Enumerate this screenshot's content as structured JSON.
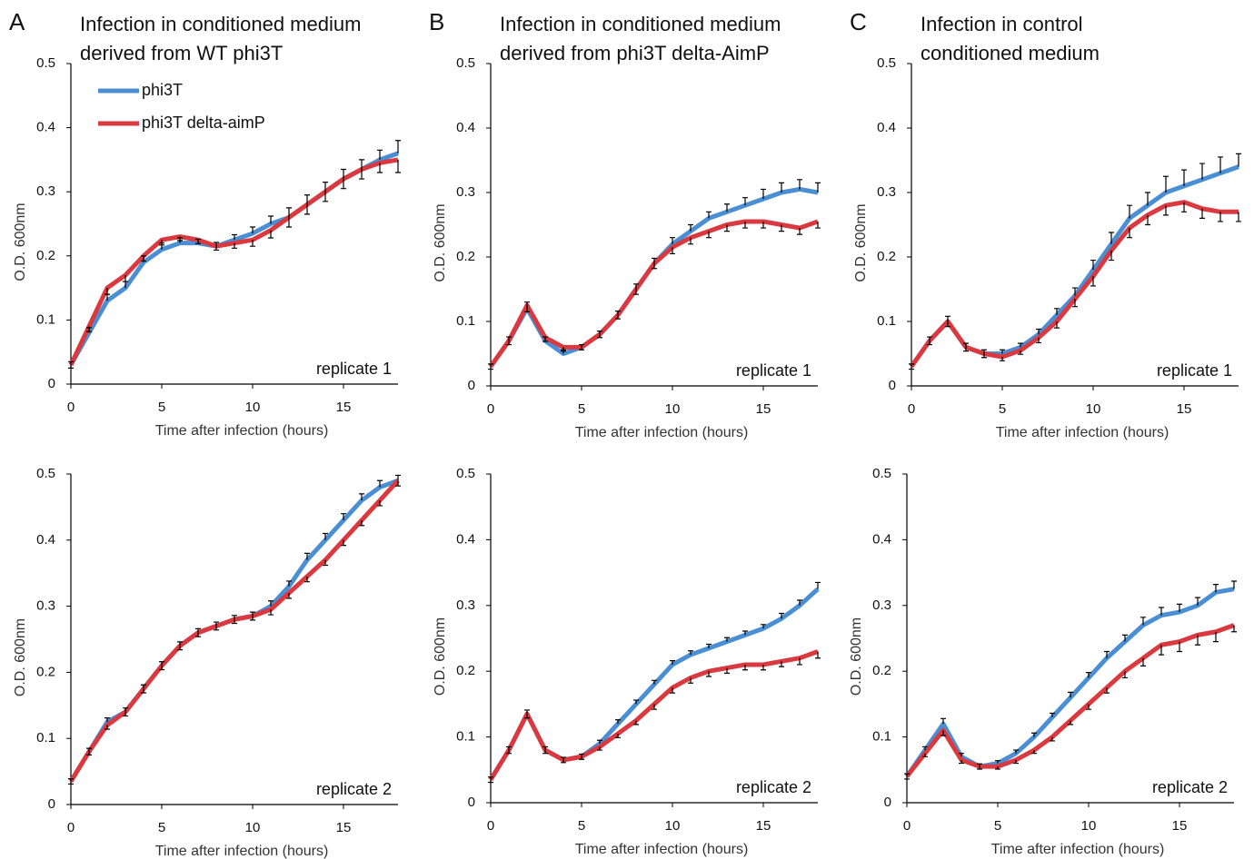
{
  "chart_data": [
    {
      "type": "line",
      "panel_label": "A",
      "title": [
        "Infection in conditioned medium",
        "derived from WT phi3T"
      ],
      "annotation": "replicate 1",
      "xlabel": "Time after infection (hours)",
      "ylabel": "O.D. 600nm",
      "x": [
        0,
        1,
        2,
        3,
        4,
        5,
        6,
        7,
        8,
        9,
        10,
        11,
        12,
        13,
        14,
        15,
        16,
        17,
        18
      ],
      "xlim": [
        0,
        18
      ],
      "xticks": [
        0,
        5,
        10,
        15
      ],
      "ylim": [
        0,
        0.5
      ],
      "yticks": [
        0,
        0.1,
        0.2,
        0.3,
        0.4,
        0.5
      ],
      "legend": "upper left",
      "series": [
        {
          "name": "phi3T",
          "color": "#4a8fd4",
          "values": [
            0.03,
            0.08,
            0.13,
            0.15,
            0.19,
            0.21,
            0.22,
            0.22,
            0.215,
            0.225,
            0.235,
            0.25,
            0.26,
            0.28,
            0.3,
            0.32,
            0.335,
            0.35,
            0.36
          ],
          "errors": [
            0.005,
            0.008,
            0.01,
            0.01,
            0.01,
            0.01,
            0.008,
            0.006,
            0.006,
            0.008,
            0.01,
            0.012,
            0.015,
            0.015,
            0.015,
            0.015,
            0.015,
            0.015,
            0.02
          ]
        },
        {
          "name": "phi3T delta-aimP",
          "color": "#d9393f",
          "values": [
            0.03,
            0.09,
            0.15,
            0.17,
            0.2,
            0.225,
            0.23,
            0.225,
            0.215,
            0.22,
            0.225,
            0.24,
            0.26,
            0.28,
            0.3,
            0.32,
            0.335,
            0.345,
            0.35
          ],
          "errors": [
            0.005,
            0.008,
            0.01,
            0.01,
            0.008,
            0.008,
            0.006,
            0.006,
            0.006,
            0.008,
            0.01,
            0.012,
            0.015,
            0.015,
            0.015,
            0.015,
            0.015,
            0.015,
            0.02
          ]
        }
      ]
    },
    {
      "type": "line",
      "panel_label": "B",
      "title": [
        "Infection in conditioned medium",
        "derived from phi3T delta-AimP"
      ],
      "annotation": "replicate 1",
      "xlabel": "Time after infection (hours)",
      "ylabel": "O.D. 600nm",
      "x": [
        0,
        1,
        2,
        3,
        4,
        5,
        6,
        7,
        8,
        9,
        10,
        11,
        12,
        13,
        14,
        15,
        16,
        17,
        18
      ],
      "xlim": [
        0,
        18
      ],
      "xticks": [
        0,
        5,
        10,
        15
      ],
      "ylim": [
        0,
        0.5
      ],
      "yticks": [
        0,
        0.1,
        0.2,
        0.3,
        0.4,
        0.5
      ],
      "series": [
        {
          "color": "#4a8fd4",
          "values": [
            0.03,
            0.07,
            0.12,
            0.07,
            0.05,
            0.06,
            0.08,
            0.11,
            0.15,
            0.19,
            0.22,
            0.24,
            0.26,
            0.27,
            0.28,
            0.29,
            0.3,
            0.305,
            0.3
          ],
          "errors": [
            0.004,
            0.006,
            0.01,
            0.006,
            0.004,
            0.004,
            0.005,
            0.006,
            0.008,
            0.008,
            0.01,
            0.01,
            0.01,
            0.012,
            0.012,
            0.015,
            0.015,
            0.015,
            0.015
          ]
        },
        {
          "color": "#d9393f",
          "values": [
            0.03,
            0.07,
            0.125,
            0.075,
            0.06,
            0.06,
            0.08,
            0.11,
            0.15,
            0.19,
            0.215,
            0.23,
            0.24,
            0.25,
            0.255,
            0.255,
            0.25,
            0.245,
            0.255
          ],
          "errors": [
            0.004,
            0.006,
            0.01,
            0.006,
            0.004,
            0.004,
            0.005,
            0.006,
            0.008,
            0.008,
            0.01,
            0.01,
            0.01,
            0.01,
            0.01,
            0.01,
            0.01,
            0.01,
            0.01
          ]
        }
      ]
    },
    {
      "type": "line",
      "panel_label": "C",
      "title": [
        "Infection in control",
        "conditioned medium"
      ],
      "annotation": "replicate 1",
      "xlabel": "Time after infection (hours)",
      "ylabel": "O.D. 600nm",
      "x": [
        0,
        1,
        2,
        3,
        4,
        5,
        6,
        7,
        8,
        9,
        10,
        11,
        12,
        13,
        14,
        15,
        16,
        17,
        18
      ],
      "xlim": [
        0,
        18
      ],
      "xticks": [
        0,
        5,
        10,
        15
      ],
      "ylim": [
        0,
        0.5
      ],
      "yticks": [
        0,
        0.1,
        0.2,
        0.3,
        0.4,
        0.5
      ],
      "series": [
        {
          "color": "#4a8fd4",
          "values": [
            0.03,
            0.07,
            0.1,
            0.06,
            0.05,
            0.05,
            0.06,
            0.08,
            0.11,
            0.14,
            0.18,
            0.22,
            0.26,
            0.28,
            0.3,
            0.31,
            0.32,
            0.33,
            0.34
          ],
          "errors": [
            0.004,
            0.006,
            0.008,
            0.006,
            0.006,
            0.006,
            0.006,
            0.008,
            0.01,
            0.012,
            0.015,
            0.018,
            0.02,
            0.02,
            0.025,
            0.025,
            0.025,
            0.025,
            0.02
          ]
        },
        {
          "color": "#d9393f",
          "values": [
            0.03,
            0.07,
            0.1,
            0.06,
            0.05,
            0.045,
            0.055,
            0.075,
            0.1,
            0.135,
            0.17,
            0.21,
            0.245,
            0.265,
            0.28,
            0.285,
            0.275,
            0.27,
            0.27
          ],
          "errors": [
            0.004,
            0.006,
            0.008,
            0.006,
            0.006,
            0.006,
            0.006,
            0.008,
            0.01,
            0.012,
            0.015,
            0.015,
            0.015,
            0.015,
            0.015,
            0.015,
            0.015,
            0.015,
            0.015
          ]
        }
      ]
    },
    {
      "type": "line",
      "annotation": "replicate 2",
      "xlabel": "Time after infection (hours)",
      "ylabel": "O.D. 600nm",
      "x": [
        0,
        1,
        2,
        3,
        4,
        5,
        6,
        7,
        8,
        9,
        10,
        11,
        12,
        13,
        14,
        15,
        16,
        17,
        18
      ],
      "xlim": [
        0,
        18
      ],
      "xticks": [
        0,
        5,
        10,
        15
      ],
      "ylim": [
        0,
        0.5
      ],
      "yticks": [
        0,
        0.1,
        0.2,
        0.3,
        0.4,
        0.5
      ],
      "series": [
        {
          "color": "#4a8fd4",
          "values": [
            0.035,
            0.08,
            0.125,
            0.14,
            0.175,
            0.21,
            0.24,
            0.26,
            0.27,
            0.28,
            0.285,
            0.3,
            0.33,
            0.37,
            0.4,
            0.43,
            0.46,
            0.48,
            0.49
          ],
          "errors": [
            0.004,
            0.005,
            0.006,
            0.006,
            0.006,
            0.006,
            0.006,
            0.006,
            0.006,
            0.006,
            0.006,
            0.008,
            0.008,
            0.01,
            0.01,
            0.01,
            0.01,
            0.01,
            0.008
          ]
        },
        {
          "color": "#d9393f",
          "values": [
            0.035,
            0.08,
            0.12,
            0.14,
            0.175,
            0.21,
            0.24,
            0.26,
            0.27,
            0.28,
            0.285,
            0.295,
            0.32,
            0.345,
            0.37,
            0.4,
            0.43,
            0.46,
            0.49
          ],
          "errors": [
            0.004,
            0.005,
            0.006,
            0.006,
            0.006,
            0.006,
            0.006,
            0.006,
            0.006,
            0.006,
            0.006,
            0.008,
            0.008,
            0.008,
            0.008,
            0.008,
            0.008,
            0.008,
            0.008
          ]
        }
      ]
    },
    {
      "type": "line",
      "annotation": "replicate 2",
      "xlabel": "Time after infection (hours)",
      "ylabel": "O.D. 600nm",
      "x": [
        0,
        1,
        2,
        3,
        4,
        5,
        6,
        7,
        8,
        9,
        10,
        11,
        12,
        13,
        14,
        15,
        16,
        17,
        18
      ],
      "xlim": [
        0,
        18
      ],
      "xticks": [
        0,
        5,
        10,
        15
      ],
      "ylim": [
        0,
        0.5
      ],
      "yticks": [
        0,
        0.1,
        0.2,
        0.3,
        0.4,
        0.5
      ],
      "series": [
        {
          "color": "#4a8fd4",
          "values": [
            0.035,
            0.08,
            0.135,
            0.08,
            0.065,
            0.07,
            0.09,
            0.12,
            0.15,
            0.18,
            0.21,
            0.225,
            0.235,
            0.245,
            0.255,
            0.265,
            0.28,
            0.3,
            0.325
          ],
          "errors": [
            0.004,
            0.005,
            0.006,
            0.005,
            0.004,
            0.004,
            0.005,
            0.006,
            0.006,
            0.006,
            0.006,
            0.006,
            0.006,
            0.006,
            0.006,
            0.006,
            0.008,
            0.008,
            0.01
          ]
        },
        {
          "color": "#d9393f",
          "values": [
            0.035,
            0.08,
            0.135,
            0.08,
            0.065,
            0.07,
            0.085,
            0.105,
            0.125,
            0.15,
            0.175,
            0.19,
            0.2,
            0.205,
            0.21,
            0.21,
            0.215,
            0.22,
            0.23
          ],
          "errors": [
            0.004,
            0.005,
            0.006,
            0.005,
            0.004,
            0.004,
            0.005,
            0.006,
            0.006,
            0.008,
            0.008,
            0.008,
            0.008,
            0.008,
            0.008,
            0.008,
            0.008,
            0.01,
            0.01
          ]
        }
      ]
    },
    {
      "type": "line",
      "annotation": "replicate 2",
      "xlabel": "Time after infection (hours)",
      "ylabel": "O.D. 600nm",
      "x": [
        0,
        1,
        2,
        3,
        4,
        5,
        6,
        7,
        8,
        9,
        10,
        11,
        12,
        13,
        14,
        15,
        16,
        17,
        18
      ],
      "xlim": [
        0,
        18
      ],
      "xticks": [
        0,
        5,
        10,
        15
      ],
      "ylim": [
        0,
        0.5
      ],
      "yticks": [
        0,
        0.1,
        0.2,
        0.3,
        0.4,
        0.5
      ],
      "series": [
        {
          "color": "#4a8fd4",
          "values": [
            0.04,
            0.08,
            0.12,
            0.07,
            0.055,
            0.06,
            0.075,
            0.1,
            0.13,
            0.16,
            0.19,
            0.22,
            0.245,
            0.27,
            0.285,
            0.29,
            0.3,
            0.32,
            0.325
          ],
          "errors": [
            0.004,
            0.005,
            0.008,
            0.005,
            0.004,
            0.004,
            0.005,
            0.006,
            0.006,
            0.008,
            0.008,
            0.01,
            0.01,
            0.012,
            0.012,
            0.012,
            0.012,
            0.012,
            0.012
          ]
        },
        {
          "color": "#d9393f",
          "values": [
            0.04,
            0.075,
            0.11,
            0.065,
            0.055,
            0.055,
            0.065,
            0.08,
            0.1,
            0.125,
            0.15,
            0.175,
            0.2,
            0.22,
            0.24,
            0.245,
            0.255,
            0.26,
            0.27
          ],
          "errors": [
            0.004,
            0.005,
            0.008,
            0.005,
            0.004,
            0.004,
            0.005,
            0.005,
            0.006,
            0.006,
            0.008,
            0.008,
            0.01,
            0.012,
            0.015,
            0.015,
            0.015,
            0.015,
            0.01
          ]
        }
      ]
    }
  ]
}
